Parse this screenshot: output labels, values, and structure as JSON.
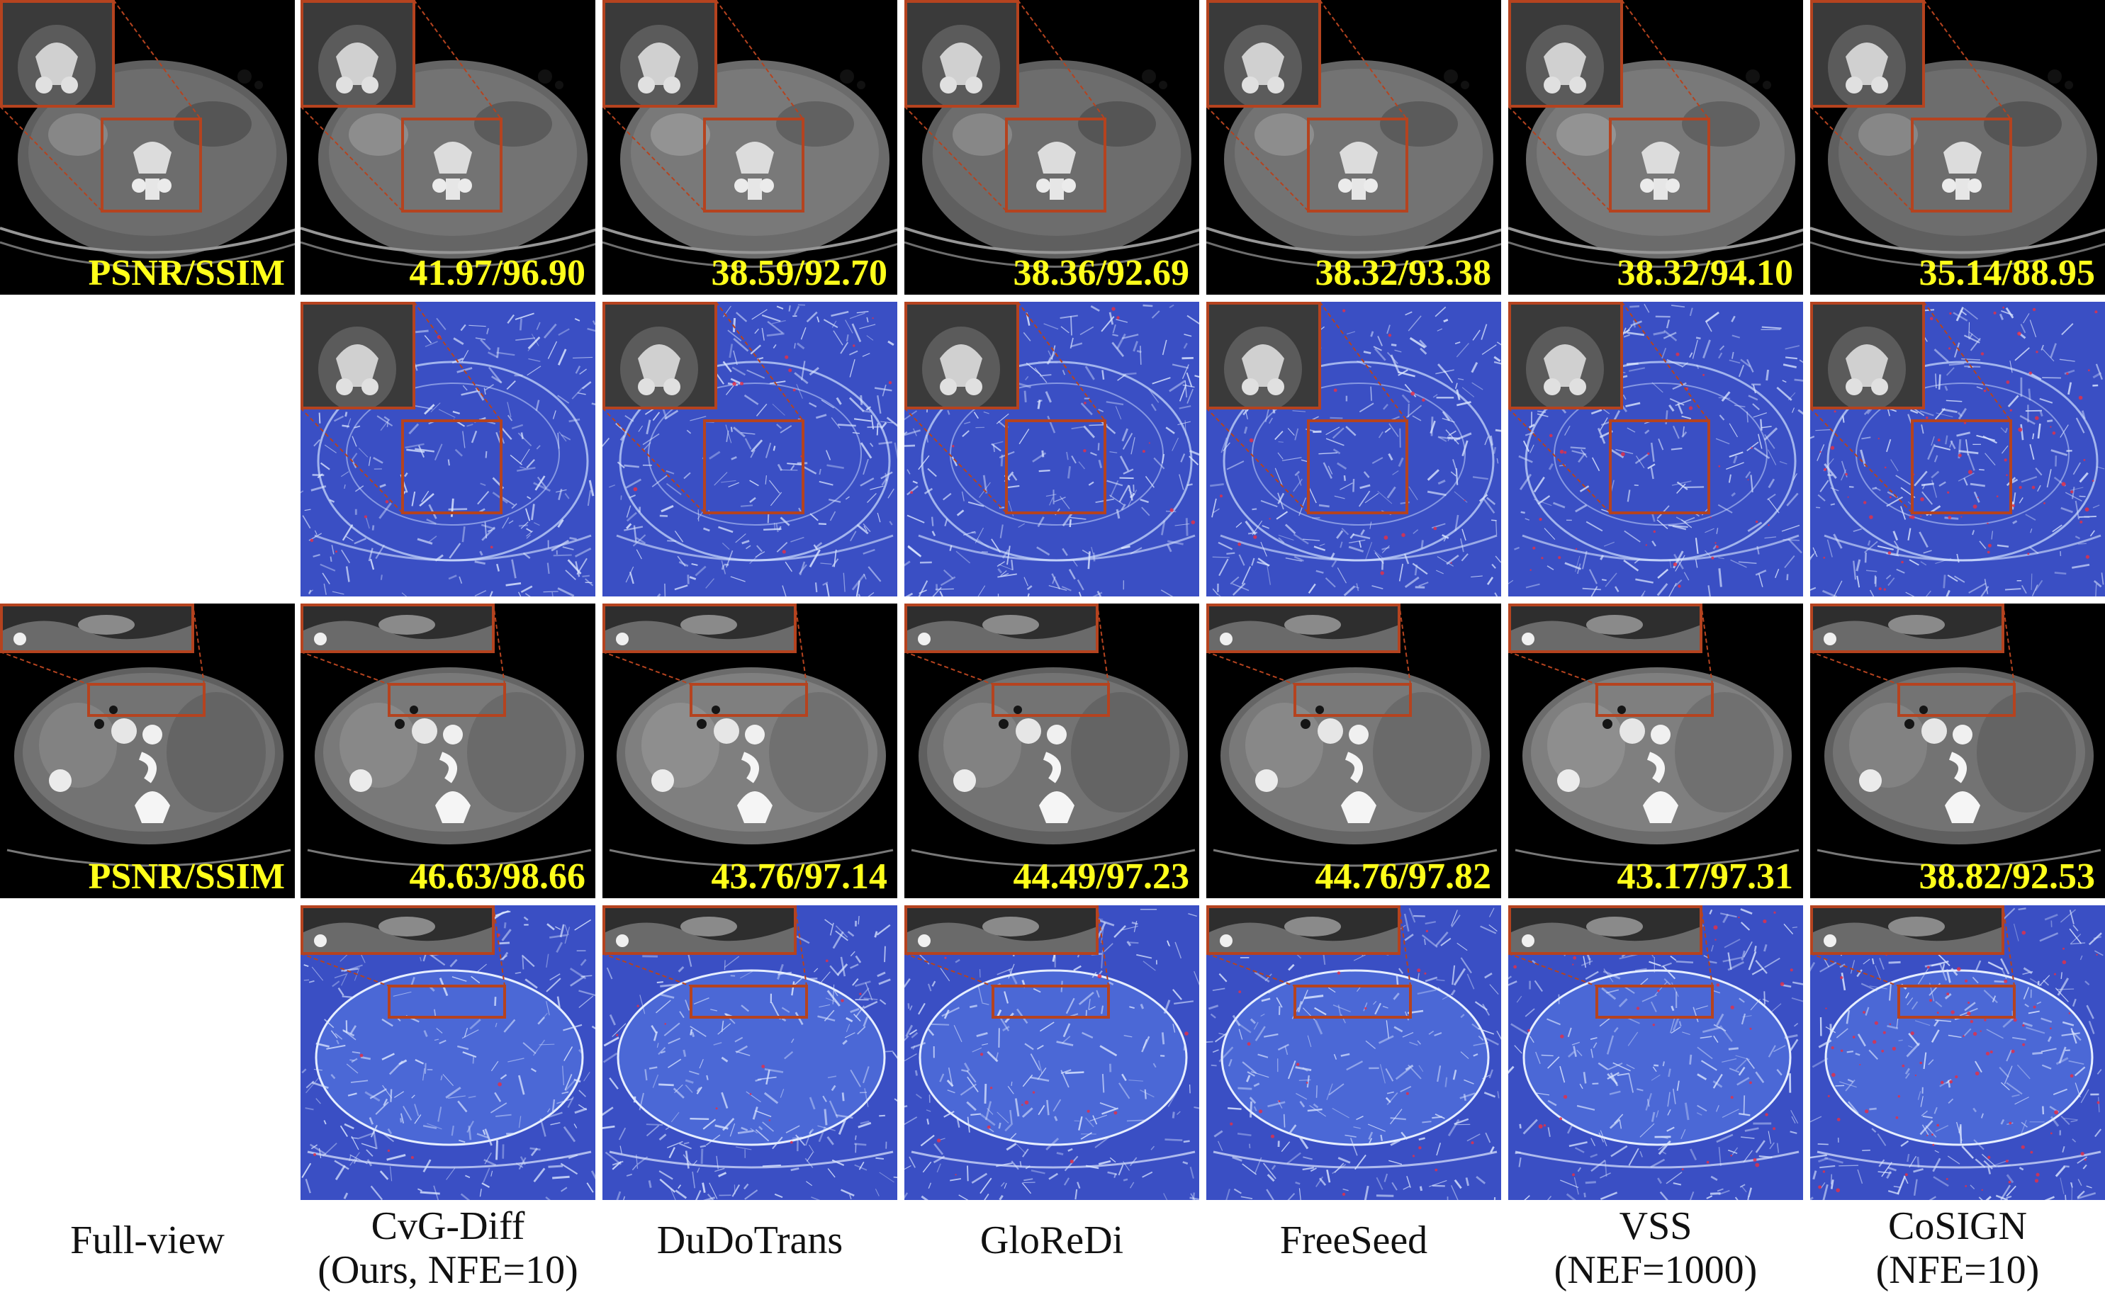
{
  "figure": {
    "columns": [
      {
        "id": "full-view",
        "label_lines": [
          "Full-view"
        ]
      },
      {
        "id": "cvg-diff",
        "label_lines": [
          "CvG-Diff",
          "(Ours, NFE=10)"
        ]
      },
      {
        "id": "dudotrans",
        "label_lines": [
          "DuDoTrans"
        ]
      },
      {
        "id": "gloredi",
        "label_lines": [
          "GloReDi"
        ]
      },
      {
        "id": "freeseed",
        "label_lines": [
          "FreeSeed"
        ]
      },
      {
        "id": "vss",
        "label_lines": [
          "VSS",
          "(NEF=1000)"
        ]
      },
      {
        "id": "cosign",
        "label_lines": [
          "CoSIGN",
          "(NFE=10)"
        ]
      }
    ],
    "rows": [
      {
        "id": "case1-ct",
        "kind": "ct",
        "roi": "spine",
        "metrics": [
          "PSNR/SSIM",
          "41.97/96.90",
          "38.59/92.70",
          "38.36/92.69",
          "38.32/93.38",
          "38.32/94.10",
          "35.14/88.95"
        ]
      },
      {
        "id": "case1-error",
        "kind": "error",
        "roi": "spine",
        "metrics": []
      },
      {
        "id": "case2-ct",
        "kind": "ct",
        "roi": "bowel",
        "metrics": [
          "PSNR/SSIM",
          "46.63/98.66",
          "43.76/97.14",
          "44.49/97.23",
          "44.76/97.82",
          "43.17/97.31",
          "38.82/92.53"
        ]
      },
      {
        "id": "case2-error",
        "kind": "error",
        "roi": "bowel",
        "metrics": []
      }
    ],
    "colors": {
      "ct_background": "#000000",
      "error_map_base": "#3a4fc4",
      "roi_box": "#b5431f",
      "metric_text": "#ffff1a"
    }
  }
}
